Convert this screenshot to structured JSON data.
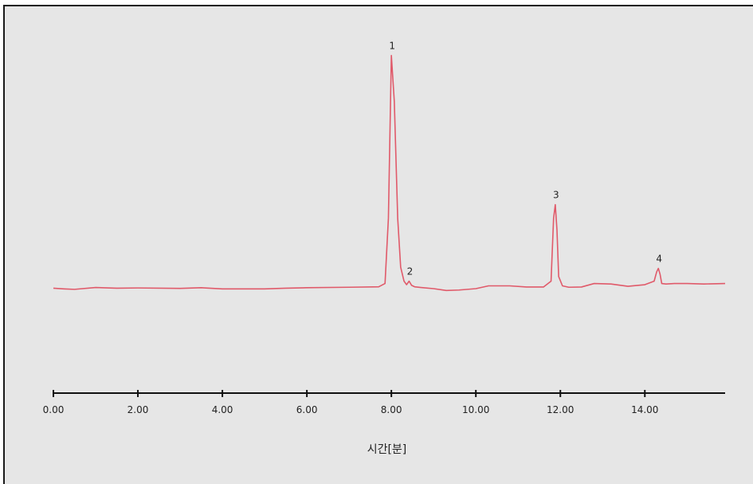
{
  "chart_data": {
    "type": "line",
    "title": "",
    "xlabel": "시간[분]",
    "ylabel": "",
    "xlim": [
      0,
      15.9
    ],
    "ylim": [
      -0.45,
      1.0
    ],
    "grid": false,
    "legend": "none",
    "x_ticks": [
      0,
      2,
      4,
      6,
      8,
      10,
      12,
      14
    ],
    "x_tick_labels": [
      "0.00",
      "2.00",
      "4.00",
      "6.00",
      "8.00",
      "10.00",
      "12.00",
      "14.00"
    ],
    "series": [
      {
        "line_color": "#e05a6a",
        "x": [
          0.0,
          0.25,
          0.5,
          1.0,
          1.5,
          2.0,
          3.0,
          3.5,
          4.0,
          5.0,
          5.5,
          6.0,
          7.0,
          7.7,
          7.85,
          7.93,
          8.0,
          8.07,
          8.15,
          8.22,
          8.3,
          8.36,
          8.42,
          8.48,
          8.55,
          8.7,
          9.0,
          9.3,
          9.6,
          10.0,
          10.3,
          10.8,
          11.2,
          11.6,
          11.78,
          11.84,
          11.88,
          11.92,
          11.96,
          12.05,
          12.2,
          12.5,
          12.8,
          13.2,
          13.6,
          14.0,
          14.22,
          14.28,
          14.32,
          14.36,
          14.4,
          14.5,
          14.7,
          15.0,
          15.4,
          15.9
        ],
        "y": [
          0.0,
          -0.003,
          -0.005,
          0.003,
          0.0,
          0.001,
          -0.001,
          0.002,
          -0.003,
          -0.003,
          0.0,
          0.002,
          0.004,
          0.006,
          0.02,
          0.3,
          0.998,
          0.8,
          0.3,
          0.09,
          0.03,
          0.015,
          0.03,
          0.012,
          0.006,
          0.003,
          -0.002,
          -0.01,
          -0.008,
          -0.002,
          0.01,
          0.01,
          0.005,
          0.005,
          0.03,
          0.3,
          0.358,
          0.25,
          0.05,
          0.01,
          0.004,
          0.005,
          0.02,
          0.018,
          0.008,
          0.015,
          0.03,
          0.07,
          0.085,
          0.06,
          0.02,
          0.018,
          0.02,
          0.02,
          0.018,
          0.02
        ]
      }
    ],
    "annotations": [
      {
        "text": "1",
        "x": 8.0,
        "y": 0.998
      },
      {
        "text": "2",
        "x": 8.42,
        "y": 0.03
      },
      {
        "text": "3",
        "x": 11.88,
        "y": 0.358
      },
      {
        "text": "4",
        "x": 14.32,
        "y": 0.085
      }
    ]
  }
}
